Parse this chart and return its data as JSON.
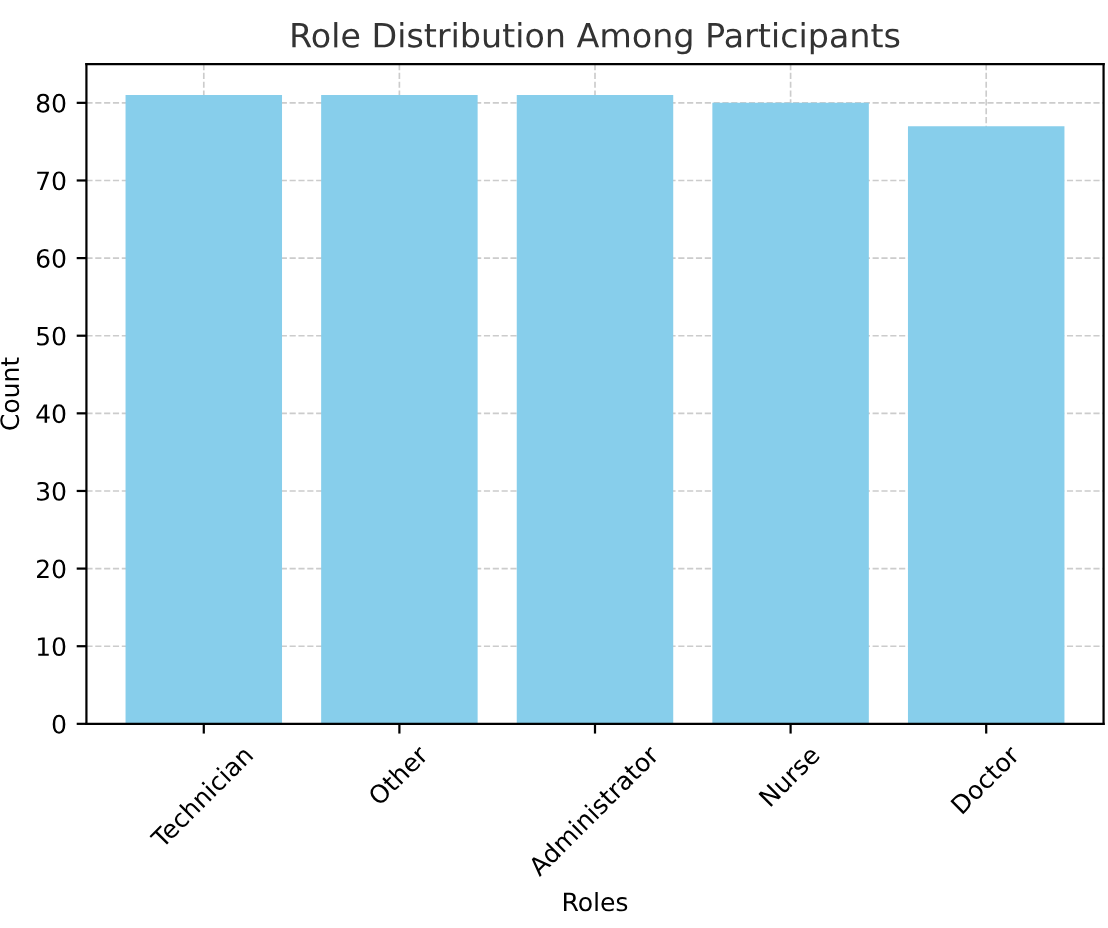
{
  "chart_data": {
    "type": "bar",
    "title": "Role Distribution Among Participants",
    "xlabel": "Roles",
    "ylabel": "Count",
    "categories": [
      "Technician",
      "Other",
      "Administrator",
      "Nurse",
      "Doctor"
    ],
    "values": [
      81,
      81,
      81,
      80,
      77
    ],
    "color": "#87ceeb",
    "ylim": [
      0,
      85
    ],
    "yticks": [
      0,
      10,
      20,
      30,
      40,
      50,
      60,
      70,
      80
    ],
    "grid": true,
    "line_style": "dashed"
  }
}
